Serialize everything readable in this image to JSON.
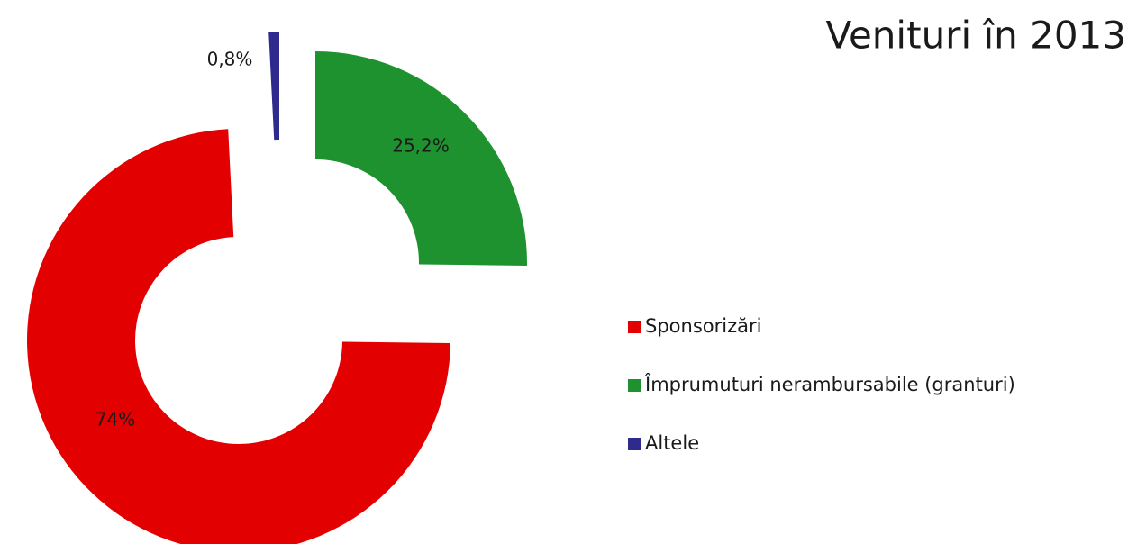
{
  "chart_data": {
    "type": "donut",
    "title": "Venituri în 2013",
    "categories": [
      "Sponsorizări",
      "Împrumuturi nerambursabile (granturi)",
      "Altele"
    ],
    "values": [
      74,
      25.2,
      0.8
    ],
    "value_labels": [
      "74%",
      "25,2%",
      "0,8%"
    ],
    "colors": [
      "#e30000",
      "#1e922e",
      "#2e2a8e"
    ],
    "legend": "right"
  }
}
